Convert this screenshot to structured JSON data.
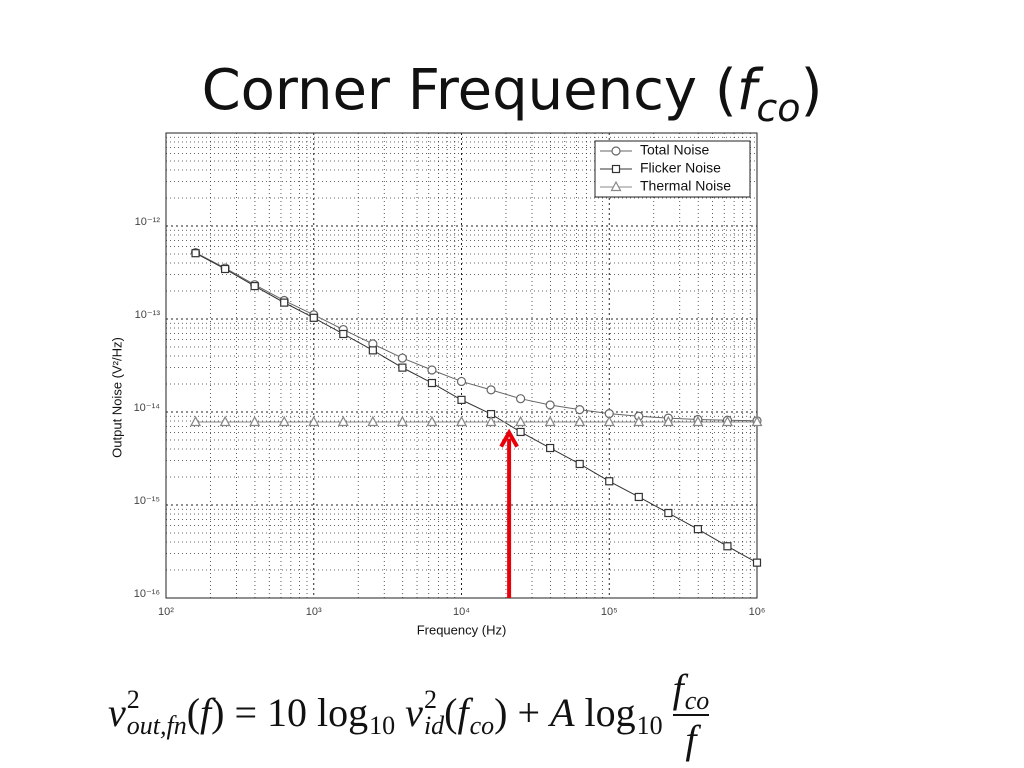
{
  "slide": {
    "title_prefix": "Corner Frequency (",
    "title_symbol": "f",
    "title_subscript": "co",
    "title_suffix": ")"
  },
  "chart_data": {
    "type": "line",
    "log_x": true,
    "log_y": true,
    "grid": true,
    "xlabel": "Frequency (Hz)",
    "ylabel": "Output Noise (V²/Hz)",
    "xlim": [
      100,
      1000000
    ],
    "ylim": [
      1e-16,
      1e-11
    ],
    "xticks": [
      {
        "value": 100,
        "label": "10²"
      },
      {
        "value": 1000,
        "label": "10³"
      },
      {
        "value": 10000,
        "label": "10⁴"
      },
      {
        "value": 100000,
        "label": "10⁵"
      },
      {
        "value": 1000000,
        "label": "10⁶"
      }
    ],
    "yticks": [
      {
        "value": 1e-16,
        "label": "10⁻¹⁶"
      },
      {
        "value": 1e-15,
        "label": "10⁻¹⁵"
      },
      {
        "value": 1e-14,
        "label": "10⁻¹⁴"
      },
      {
        "value": 1e-13,
        "label": "10⁻¹³"
      },
      {
        "value": 1e-12,
        "label": "10⁻¹²"
      }
    ],
    "legend": "upper right",
    "x": [
      158.5,
      251.2,
      398.1,
      631,
      1000,
      1585,
      2512,
      3981,
      6310,
      10000,
      15849,
      25119,
      39811,
      63096,
      100000,
      158489,
      251189,
      398107,
      630957,
      1000000
    ],
    "series": [
      {
        "name": "Total Noise",
        "color": "#666666",
        "marker": "circle",
        "values": [
          5.18e-13,
          3.53e-13,
          2.34e-13,
          1.58e-13,
          1.11e-13,
          7.7e-14,
          5.4e-14,
          3.8e-14,
          2.83e-14,
          2.13e-14,
          1.73e-14,
          1.39e-14,
          1.19e-14,
          1.06e-14,
          9.6e-15,
          9e-15,
          8.6e-15,
          8.3e-15,
          8.16e-15,
          8.04e-15
        ]
      },
      {
        "name": "Flicker Noise",
        "color": "#333333",
        "marker": "square",
        "values": [
          5.1e-13,
          3.45e-13,
          2.26e-13,
          1.5e-13,
          1.03e-13,
          6.9e-14,
          4.6e-14,
          3e-14,
          2.05e-14,
          1.35e-14,
          9.5e-15,
          6.1e-15,
          4.1e-15,
          2.76e-15,
          1.8e-15,
          1.22e-15,
          8.2e-16,
          5.5e-16,
          3.6e-16,
          2.4e-16
        ]
      },
      {
        "name": "Thermal Noise",
        "color": "#888888",
        "marker": "triangle",
        "values": [
          7.8e-15,
          7.8e-15,
          7.8e-15,
          7.8e-15,
          7.8e-15,
          7.8e-15,
          7.8e-15,
          7.8e-15,
          7.8e-15,
          7.8e-15,
          7.8e-15,
          7.8e-15,
          7.8e-15,
          7.8e-15,
          7.8e-15,
          7.8e-15,
          7.8e-15,
          7.8e-15,
          7.8e-15,
          7.8e-15
        ]
      }
    ],
    "arrow": {
      "x": 21000,
      "y": 6e-15,
      "color": "#e8000b"
    }
  },
  "equation": {
    "tokens": [
      {
        "t": "v",
        "italic": true,
        "sup": "2",
        "sub": "out,fn"
      },
      {
        "t": "("
      },
      {
        "t": "f",
        "italic": true
      },
      {
        "t": ") = 10 log",
        "sub": "10"
      },
      {
        "t": " v",
        "italic": true,
        "sup": "2",
        "sub": "id"
      },
      {
        "t": "("
      },
      {
        "t": "f",
        "italic": true,
        "sub": "co"
      },
      {
        "t": ") + "
      },
      {
        "t": "A",
        "italic": true
      },
      {
        "t": " log",
        "sub": "10"
      }
    ],
    "fraction": {
      "num": {
        "t": "f",
        "italic": true,
        "sub": "co"
      },
      "den": {
        "t": "f",
        "italic": true
      }
    }
  }
}
